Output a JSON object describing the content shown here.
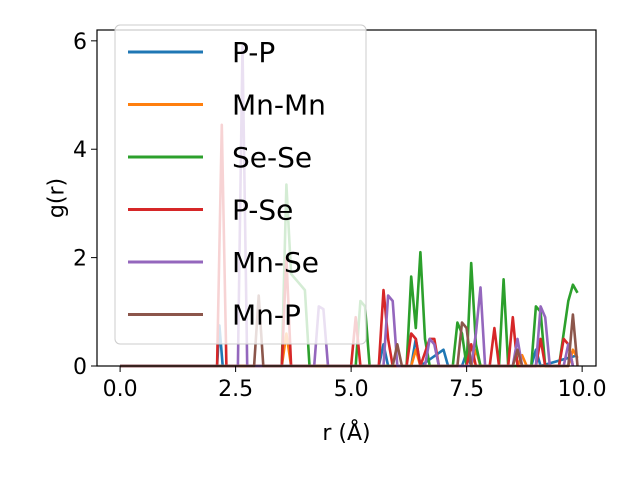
{
  "chart_data": {
    "type": "line",
    "xlabel": "r (Å)",
    "ylabel": "g(r)",
    "xlim": [
      -0.5,
      10.3
    ],
    "ylim": [
      0,
      6.2
    ],
    "xticks": [
      0.0,
      2.5,
      5.0,
      7.5,
      10.0
    ],
    "xtick_labels": [
      "0.0",
      "2.5",
      "5.0",
      "7.5",
      "10.0"
    ],
    "yticks": [
      0,
      2,
      4,
      6
    ],
    "ytick_labels": [
      "0",
      "2",
      "4",
      "6"
    ],
    "grid": false,
    "legend_position": "upper-left",
    "series": [
      {
        "name": "P-P",
        "color": "#1f77b4",
        "points": [
          [
            0,
            0
          ],
          [
            2.1,
            0
          ],
          [
            2.15,
            0.75
          ],
          [
            2.22,
            0
          ],
          [
            5.6,
            0
          ],
          [
            5.7,
            0.4
          ],
          [
            5.8,
            0
          ],
          [
            6.3,
            0
          ],
          [
            6.4,
            0.5
          ],
          [
            6.5,
            0
          ],
          [
            7.0,
            0.3
          ],
          [
            7.1,
            0
          ],
          [
            7.4,
            0
          ],
          [
            7.5,
            0.25
          ],
          [
            7.6,
            0
          ],
          [
            8.9,
            0
          ],
          [
            9.0,
            0.3
          ],
          [
            9.1,
            0
          ],
          [
            9.9,
            0.2
          ]
        ]
      },
      {
        "name": "Mn-Mn",
        "color": "#ff7f0e",
        "points": [
          [
            0,
            0
          ],
          [
            3.5,
            0
          ],
          [
            3.6,
            0.6
          ],
          [
            3.7,
            0
          ],
          [
            6.3,
            0
          ],
          [
            6.4,
            0.3
          ],
          [
            6.5,
            0
          ],
          [
            7.6,
            0
          ],
          [
            7.7,
            0.3
          ],
          [
            7.8,
            0
          ],
          [
            8.6,
            0
          ],
          [
            8.7,
            0.2
          ],
          [
            8.8,
            0
          ],
          [
            9.7,
            0
          ],
          [
            9.8,
            0.3
          ],
          [
            9.9,
            0.15
          ]
        ]
      },
      {
        "name": "Se-Se",
        "color": "#2ca02c",
        "points": [
          [
            0,
            0
          ],
          [
            3.5,
            0
          ],
          [
            3.6,
            3.35
          ],
          [
            3.7,
            1.7
          ],
          [
            3.8,
            1.6
          ],
          [
            3.9,
            1.5
          ],
          [
            4.0,
            1.4
          ],
          [
            4.1,
            0
          ],
          [
            5.1,
            0
          ],
          [
            5.2,
            1.2
          ],
          [
            5.3,
            1.1
          ],
          [
            5.4,
            0
          ],
          [
            6.2,
            0
          ],
          [
            6.3,
            1.65
          ],
          [
            6.4,
            0.7
          ],
          [
            6.5,
            2.1
          ],
          [
            6.6,
            0.5
          ],
          [
            6.7,
            0
          ],
          [
            7.2,
            0
          ],
          [
            7.3,
            0.8
          ],
          [
            7.4,
            0.6
          ],
          [
            7.5,
            0
          ],
          [
            7.6,
            1.9
          ],
          [
            7.7,
            0.4
          ],
          [
            7.8,
            0
          ],
          [
            8.2,
            0
          ],
          [
            8.3,
            1.6
          ],
          [
            8.4,
            0
          ],
          [
            8.9,
            0
          ],
          [
            9.0,
            1.1
          ],
          [
            9.1,
            1.0
          ],
          [
            9.2,
            0
          ],
          [
            9.5,
            0
          ],
          [
            9.7,
            1.2
          ],
          [
            9.8,
            1.5
          ],
          [
            9.9,
            1.35
          ]
        ]
      },
      {
        "name": "P-Se",
        "color": "#d62728",
        "points": [
          [
            0,
            0
          ],
          [
            2.1,
            0
          ],
          [
            2.2,
            4.45
          ],
          [
            2.3,
            0
          ],
          [
            3.5,
            0
          ],
          [
            3.6,
            2.0
          ],
          [
            3.7,
            0
          ],
          [
            5.0,
            0
          ],
          [
            5.1,
            0.9
          ],
          [
            5.2,
            0
          ],
          [
            5.6,
            0
          ],
          [
            5.7,
            1.4
          ],
          [
            5.8,
            0.5
          ],
          [
            5.9,
            0
          ],
          [
            6.2,
            0
          ],
          [
            6.3,
            0.6
          ],
          [
            6.4,
            0.5
          ],
          [
            6.5,
            0
          ],
          [
            6.7,
            0.5
          ],
          [
            6.8,
            0.5
          ],
          [
            6.9,
            0
          ],
          [
            7.5,
            0
          ],
          [
            7.6,
            0.4
          ],
          [
            7.7,
            0
          ],
          [
            8.0,
            0
          ],
          [
            8.1,
            0.7
          ],
          [
            8.2,
            0
          ],
          [
            8.4,
            0
          ],
          [
            8.5,
            0.9
          ],
          [
            8.6,
            0
          ],
          [
            9.0,
            0
          ],
          [
            9.1,
            0.5
          ],
          [
            9.2,
            0
          ],
          [
            9.5,
            0
          ],
          [
            9.6,
            0.5
          ],
          [
            9.7,
            0.4
          ],
          [
            9.8,
            0
          ]
        ]
      },
      {
        "name": "Mn-Se",
        "color": "#9467bd",
        "points": [
          [
            0,
            0
          ],
          [
            2.55,
            0
          ],
          [
            2.65,
            5.9
          ],
          [
            2.75,
            0
          ],
          [
            4.2,
            0
          ],
          [
            4.3,
            1.1
          ],
          [
            4.4,
            1.05
          ],
          [
            4.5,
            0
          ],
          [
            5.7,
            0
          ],
          [
            5.8,
            1.3
          ],
          [
            5.9,
            1.2
          ],
          [
            6.0,
            0
          ],
          [
            6.6,
            0
          ],
          [
            6.7,
            0.5
          ],
          [
            6.8,
            0.4
          ],
          [
            6.9,
            0
          ],
          [
            7.6,
            0
          ],
          [
            7.7,
            0.6
          ],
          [
            7.8,
            1.45
          ],
          [
            7.9,
            0
          ],
          [
            8.5,
            0
          ],
          [
            8.6,
            0.5
          ],
          [
            8.7,
            0
          ],
          [
            9.0,
            0
          ],
          [
            9.1,
            1.1
          ],
          [
            9.2,
            0.9
          ],
          [
            9.3,
            0
          ],
          [
            9.6,
            0
          ],
          [
            9.7,
            0.4
          ],
          [
            9.8,
            0
          ]
        ]
      },
      {
        "name": "Mn-P",
        "color": "#8c564b",
        "points": [
          [
            0,
            0
          ],
          [
            2.9,
            0
          ],
          [
            3.0,
            1.3
          ],
          [
            3.1,
            0
          ],
          [
            5.9,
            0
          ],
          [
            6.0,
            0.4
          ],
          [
            6.1,
            0
          ],
          [
            7.3,
            0
          ],
          [
            7.4,
            0.8
          ],
          [
            7.5,
            0.7
          ],
          [
            7.6,
            0
          ],
          [
            8.5,
            0
          ],
          [
            8.6,
            0.3
          ],
          [
            8.7,
            0
          ],
          [
            9.7,
            0
          ],
          [
            9.8,
            0.95
          ],
          [
            9.9,
            0
          ]
        ]
      }
    ]
  }
}
